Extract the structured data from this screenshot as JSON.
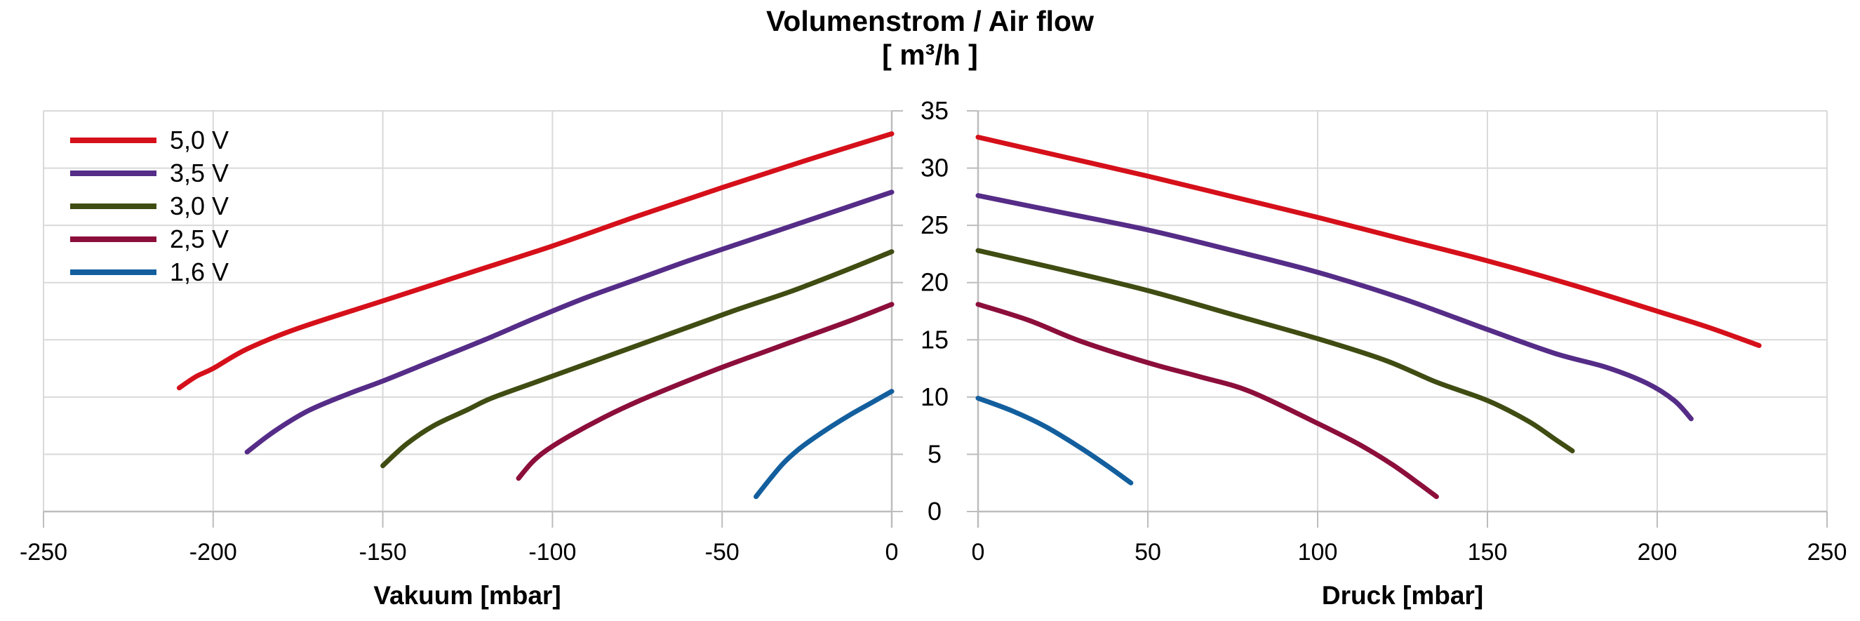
{
  "title": {
    "line1": "Volumenstrom / Air flow",
    "line2": "[ m³/h ]"
  },
  "colors": {
    "background": "#ffffff",
    "grid": "#d9d9d9",
    "axis": "#bdbdbd",
    "text": "#000000",
    "series_red": "#d5101a",
    "series_purple": "#552c87",
    "series_olive": "#3f4c12",
    "series_maroon": "#8c0e3a",
    "series_blue": "#135f9e"
  },
  "legend": {
    "items": [
      {
        "label": "5,0 V",
        "color": "#d5101a"
      },
      {
        "label": "3,5 V",
        "color": "#552c87"
      },
      {
        "label": "3,0 V",
        "color": "#3f4c12"
      },
      {
        "label": "2,5 V",
        "color": "#8c0e3a"
      },
      {
        "label": "1,6 V",
        "color": "#135f9e"
      }
    ]
  },
  "axes": {
    "left_panel": {
      "title": "Vakuum [mbar]",
      "tick_labels": [
        "-250",
        "-200",
        "-150",
        "-100",
        "-50",
        "0"
      ],
      "tick_values": [
        -250,
        -200,
        -150,
        -100,
        -50,
        0
      ]
    },
    "right_panel": {
      "title": "Druck [mbar]",
      "tick_labels": [
        "0",
        "50",
        "100",
        "150",
        "200",
        "250"
      ],
      "tick_values": [
        0,
        50,
        100,
        150,
        200,
        250
      ]
    },
    "y_axis": {
      "tick_labels": [
        "35",
        "30",
        "25",
        "20",
        "15",
        "10",
        "5",
        "0"
      ],
      "tick_values": [
        35,
        30,
        25,
        20,
        15,
        10,
        5,
        0
      ]
    }
  },
  "chart_data": {
    "type": "line",
    "title": "Volumenstrom / Air flow [ m³/h ]",
    "ylabel": "Volumenstrom / Air flow [ m³/h ]",
    "ylim": [
      0,
      35
    ],
    "grid": true,
    "legend_position": "top-left",
    "panels": [
      {
        "name": "vakuum",
        "xlabel": "Vakuum [mbar]",
        "xlim": [
          -250,
          0
        ],
        "series": [
          {
            "name": "5,0 V",
            "color": "#d5101a",
            "points": [
              [
                -210,
                10.8
              ],
              [
                -205,
                11.8
              ],
              [
                -200,
                12.5
              ],
              [
                -190,
                14.2
              ],
              [
                -175,
                16.0
              ],
              [
                -150,
                18.4
              ],
              [
                -125,
                20.8
              ],
              [
                -100,
                23.2
              ],
              [
                -75,
                25.8
              ],
              [
                -50,
                28.3
              ],
              [
                -25,
                30.7
              ],
              [
                0,
                33.0
              ]
            ]
          },
          {
            "name": "3,5 V",
            "color": "#552c87",
            "points": [
              [
                -190,
                5.2
              ],
              [
                -182,
                7.0
              ],
              [
                -172,
                8.8
              ],
              [
                -160,
                10.3
              ],
              [
                -150,
                11.4
              ],
              [
                -135,
                13.2
              ],
              [
                -120,
                15.0
              ],
              [
                -105,
                16.9
              ],
              [
                -90,
                18.7
              ],
              [
                -75,
                20.3
              ],
              [
                -60,
                21.9
              ],
              [
                -45,
                23.4
              ],
              [
                -30,
                24.9
              ],
              [
                -15,
                26.4
              ],
              [
                0,
                27.9
              ]
            ]
          },
          {
            "name": "3,0 V",
            "color": "#3f4c12",
            "points": [
              [
                -150,
                4.0
              ],
              [
                -143,
                5.9
              ],
              [
                -135,
                7.5
              ],
              [
                -125,
                8.9
              ],
              [
                -118,
                9.9
              ],
              [
                -105,
                11.3
              ],
              [
                -90,
                12.9
              ],
              [
                -75,
                14.5
              ],
              [
                -60,
                16.1
              ],
              [
                -45,
                17.7
              ],
              [
                -30,
                19.2
              ],
              [
                -15,
                20.9
              ],
              [
                0,
                22.7
              ]
            ]
          },
          {
            "name": "2,5 V",
            "color": "#8c0e3a",
            "points": [
              [
                -110,
                2.9
              ],
              [
                -106,
                4.3
              ],
              [
                -102,
                5.3
              ],
              [
                -95,
                6.6
              ],
              [
                -85,
                8.2
              ],
              [
                -75,
                9.6
              ],
              [
                -62,
                11.2
              ],
              [
                -50,
                12.6
              ],
              [
                -38,
                13.9
              ],
              [
                -25,
                15.3
              ],
              [
                -12,
                16.7
              ],
              [
                0,
                18.1
              ]
            ]
          },
          {
            "name": "1,6 V",
            "color": "#135f9e",
            "points": [
              [
                -40,
                1.3
              ],
              [
                -36,
                2.8
              ],
              [
                -32,
                4.2
              ],
              [
                -28,
                5.3
              ],
              [
                -24,
                6.2
              ],
              [
                -18,
                7.4
              ],
              [
                -12,
                8.5
              ],
              [
                -6,
                9.5
              ],
              [
                0,
                10.5
              ]
            ]
          }
        ]
      },
      {
        "name": "druck",
        "xlabel": "Druck [mbar]",
        "xlim": [
          0,
          250
        ],
        "series": [
          {
            "name": "5,0 V",
            "color": "#d5101a",
            "points": [
              [
                0,
                32.7
              ],
              [
                25,
                31.0
              ],
              [
                50,
                29.3
              ],
              [
                75,
                27.5
              ],
              [
                100,
                25.7
              ],
              [
                125,
                23.8
              ],
              [
                150,
                21.9
              ],
              [
                175,
                19.8
              ],
              [
                200,
                17.5
              ],
              [
                215,
                16.1
              ],
              [
                230,
                14.5
              ]
            ]
          },
          {
            "name": "3,5 V",
            "color": "#552c87",
            "points": [
              [
                0,
                27.6
              ],
              [
                25,
                26.1
              ],
              [
                50,
                24.6
              ],
              [
                75,
                22.8
              ],
              [
                100,
                20.9
              ],
              [
                125,
                18.6
              ],
              [
                150,
                15.9
              ],
              [
                170,
                13.8
              ],
              [
                185,
                12.6
              ],
              [
                197,
                11.2
              ],
              [
                205,
                9.7
              ],
              [
                210,
                8.1
              ]
            ]
          },
          {
            "name": "3,0 V",
            "color": "#3f4c12",
            "points": [
              [
                0,
                22.8
              ],
              [
                25,
                21.1
              ],
              [
                50,
                19.3
              ],
              [
                75,
                17.2
              ],
              [
                100,
                15.1
              ],
              [
                120,
                13.2
              ],
              [
                135,
                11.3
              ],
              [
                150,
                9.7
              ],
              [
                162,
                7.9
              ],
              [
                170,
                6.3
              ],
              [
                175,
                5.3
              ]
            ]
          },
          {
            "name": "2,5 V",
            "color": "#8c0e3a",
            "points": [
              [
                0,
                18.1
              ],
              [
                15,
                16.7
              ],
              [
                30,
                14.9
              ],
              [
                50,
                13.0
              ],
              [
                65,
                11.8
              ],
              [
                80,
                10.5
              ],
              [
                100,
                7.7
              ],
              [
                112,
                5.9
              ],
              [
                122,
                4.1
              ],
              [
                130,
                2.4
              ],
              [
                135,
                1.3
              ]
            ]
          },
          {
            "name": "1,6 V",
            "color": "#135f9e",
            "points": [
              [
                0,
                9.9
              ],
              [
                10,
                8.8
              ],
              [
                20,
                7.4
              ],
              [
                30,
                5.6
              ],
              [
                38,
                4.0
              ],
              [
                45,
                2.5
              ]
            ]
          }
        ]
      }
    ]
  }
}
